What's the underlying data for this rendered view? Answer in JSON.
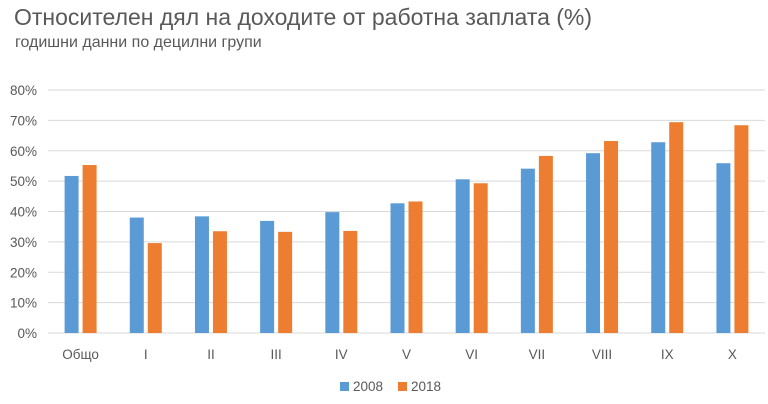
{
  "chart_data": {
    "type": "bar",
    "title": "Относителен дял на доходите от работна заплата (%)",
    "subtitle": "годишни данни по децилни групи",
    "xlabel": "",
    "ylabel": "",
    "categories": [
      "Общо",
      "I",
      "II",
      "III",
      "IV",
      "V",
      "VI",
      "VII",
      "VIII",
      "IX",
      "X"
    ],
    "series": [
      {
        "name": "2008",
        "color": "#5b9bd5",
        "values": [
          51.7,
          38.0,
          38.4,
          36.9,
          39.8,
          42.7,
          50.6,
          54.1,
          59.2,
          62.8,
          55.9
        ]
      },
      {
        "name": "2018",
        "color": "#ed7d31",
        "values": [
          55.3,
          29.6,
          33.5,
          33.3,
          33.6,
          43.3,
          49.3,
          58.3,
          63.2,
          69.4,
          68.4
        ]
      }
    ],
    "ylim": [
      0,
      80
    ],
    "yticks": [
      "0%",
      "10%",
      "20%",
      "30%",
      "40%",
      "50%",
      "60%",
      "70%",
      "80%"
    ],
    "grid": true,
    "legend": "bottom"
  }
}
